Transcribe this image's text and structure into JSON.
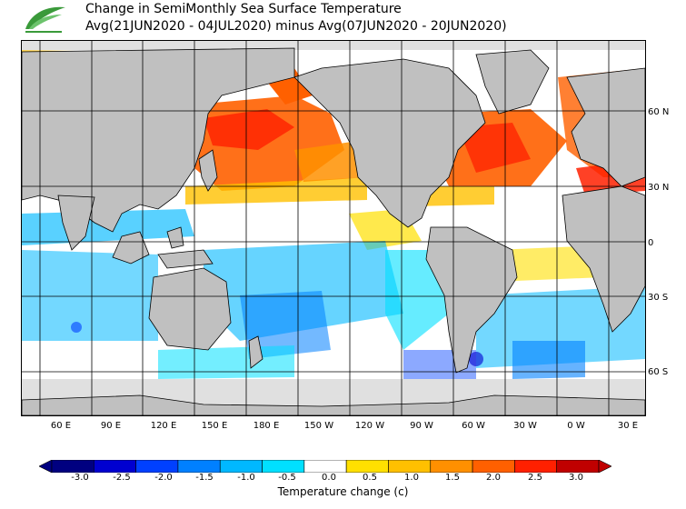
{
  "header": {
    "title": "Change in SemiMonthly Sea Surface Temperature",
    "subtitle": "Avg(21JUN2020 - 04JUL2020) minus Avg(07JUN2020 - 20JUN2020)"
  },
  "map": {
    "latitude_labels": [
      "60 N",
      "30 N",
      "0",
      "30 S",
      "60 S"
    ],
    "longitude_labels": [
      "60 E",
      "90 E",
      "120 E",
      "150 E",
      "180 E",
      "150 W",
      "120 W",
      "90 W",
      "60 W",
      "30 W",
      "0 W",
      "30 E"
    ]
  },
  "colorbar": {
    "tick_labels": [
      "-3.0",
      "-2.5",
      "-2.0",
      "-1.5",
      "-1.0",
      "-0.5",
      "0.0",
      "0.5",
      "1.0",
      "1.5",
      "2.0",
      "2.5",
      "3.0"
    ],
    "colors": [
      "#000080",
      "#0000d0",
      "#0040ff",
      "#0080ff",
      "#00b8ff",
      "#00e0ff",
      "#ffffff",
      "#ffe000",
      "#ffc000",
      "#ff9000",
      "#ff6000",
      "#ff2000",
      "#c00000"
    ],
    "title": "Temperature change  (c)",
    "land_color": "#c0c0c0",
    "sea_ice_color": "#e0e0e0"
  }
}
